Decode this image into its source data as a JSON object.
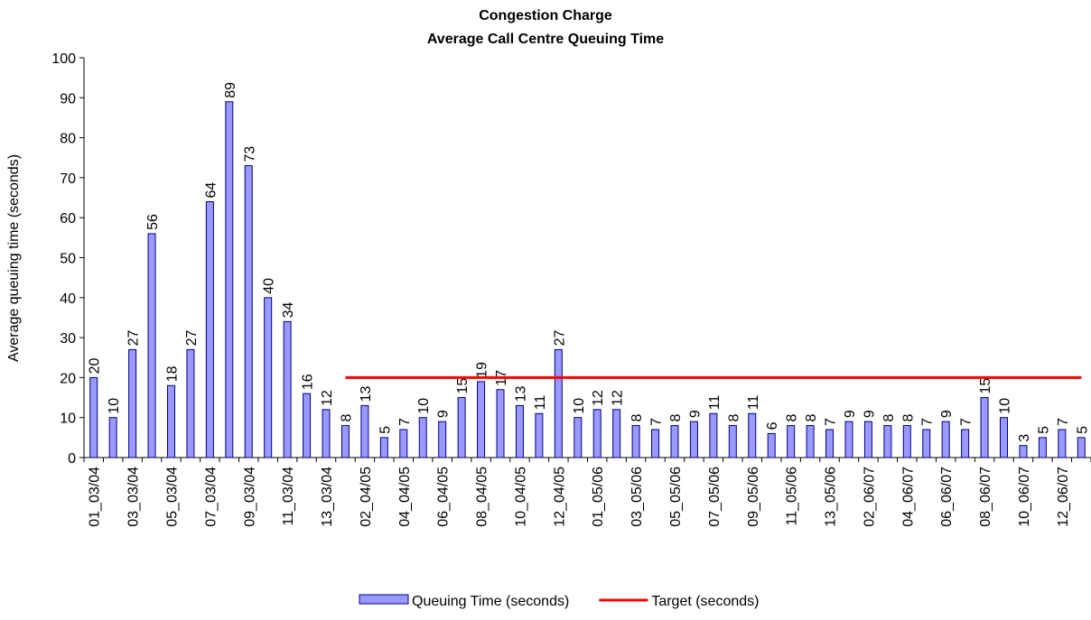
{
  "chart_data": {
    "type": "bar",
    "title": "Congestion Charge",
    "subtitle": "Average Call Centre Queuing Time",
    "y_label": "Average queuing time (seconds)",
    "categories": [
      "01_03/04",
      null,
      "03_03/04",
      null,
      "05_03/04",
      null,
      "07_03/04",
      null,
      "09_03/04",
      null,
      "11_03/04",
      null,
      "13_03/04",
      null,
      "02_04/05",
      null,
      "04_04/05",
      null,
      "06_04/05",
      null,
      "08_04/05",
      null,
      "10_04/05",
      null,
      "12_04/05",
      null,
      "01_05/06",
      null,
      "03_05/06",
      null,
      "05_05/06",
      null,
      "07_05/06",
      null,
      "09_05/06",
      null,
      "11_05/06",
      null,
      "13_05/06",
      null,
      "02_06/07",
      null,
      "04_06/07",
      null,
      "06_06/07",
      null,
      "08_06/07",
      null,
      "10_06/07",
      null,
      "12_06/07",
      null
    ],
    "series": [
      {
        "name": "Queuing Time (seconds)",
        "type": "bar",
        "color": "#9999ff",
        "values": [
          20,
          10,
          27,
          56,
          18,
          27,
          64,
          89,
          73,
          40,
          34,
          16,
          12,
          8,
          13,
          5,
          7,
          10,
          9,
          15,
          19,
          17,
          13,
          11,
          27,
          10,
          12,
          12,
          8,
          7,
          8,
          9,
          11,
          8,
          11,
          6,
          8,
          8,
          7,
          9,
          9,
          8,
          8,
          7,
          9,
          7,
          15,
          10,
          3,
          5,
          7,
          5
        ]
      },
      {
        "name": "Target (seconds)",
        "type": "line",
        "color": "#ff0000",
        "values": [
          null,
          null,
          null,
          null,
          null,
          null,
          null,
          null,
          null,
          null,
          null,
          null,
          null,
          20,
          20,
          20,
          20,
          20,
          20,
          20,
          20,
          20,
          20,
          20,
          20,
          20,
          20,
          20,
          20,
          20,
          20,
          20,
          20,
          20,
          20,
          20,
          20,
          20,
          20,
          20,
          20,
          20,
          20,
          20,
          20,
          20,
          20,
          20,
          20,
          20,
          20,
          20
        ]
      }
    ],
    "ylim": [
      0,
      100
    ],
    "yticks": [
      0,
      10,
      20,
      30,
      40,
      50,
      60,
      70,
      80,
      90,
      100
    ],
    "grid": false,
    "legend": "bottom"
  }
}
